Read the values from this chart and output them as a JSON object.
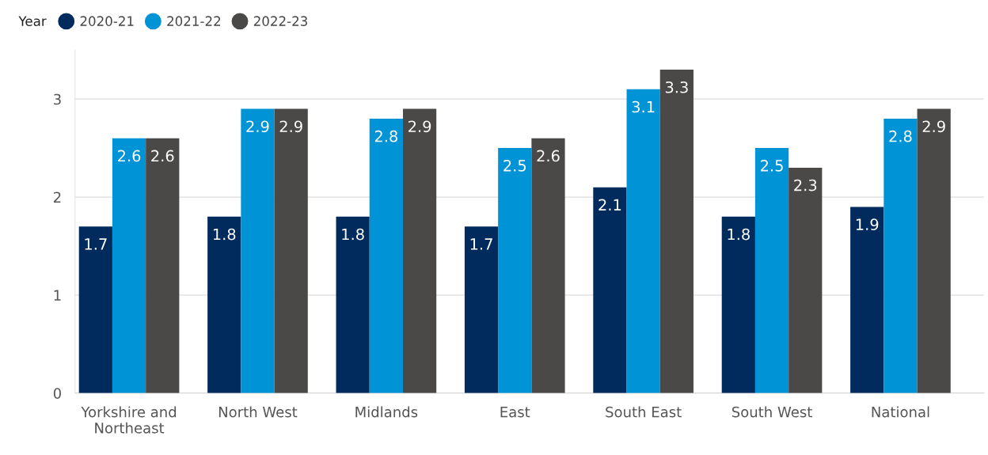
{
  "chart_data": {
    "type": "bar",
    "legend_title": "Year",
    "legend": "top left",
    "categories": [
      "Yorkshire and\nNortheast",
      "North West",
      "Midlands",
      "East",
      "South East",
      "South West",
      "National"
    ],
    "series": [
      {
        "name": "2020-21",
        "color": "#002b5c",
        "values": [
          1.7,
          1.8,
          1.8,
          1.7,
          2.1,
          1.8,
          1.9
        ]
      },
      {
        "name": "2021-22",
        "color": "#0093d5",
        "values": [
          2.6,
          2.9,
          2.8,
          2.5,
          3.1,
          2.5,
          2.8
        ]
      },
      {
        "name": "2022-23",
        "color": "#4a4948",
        "values": [
          2.6,
          2.9,
          2.9,
          2.6,
          3.3,
          2.3,
          2.9
        ]
      }
    ],
    "ylim": [
      0,
      3.5
    ],
    "yticks": [
      0,
      1,
      2,
      3
    ],
    "grid": "y",
    "data_labels": true
  }
}
